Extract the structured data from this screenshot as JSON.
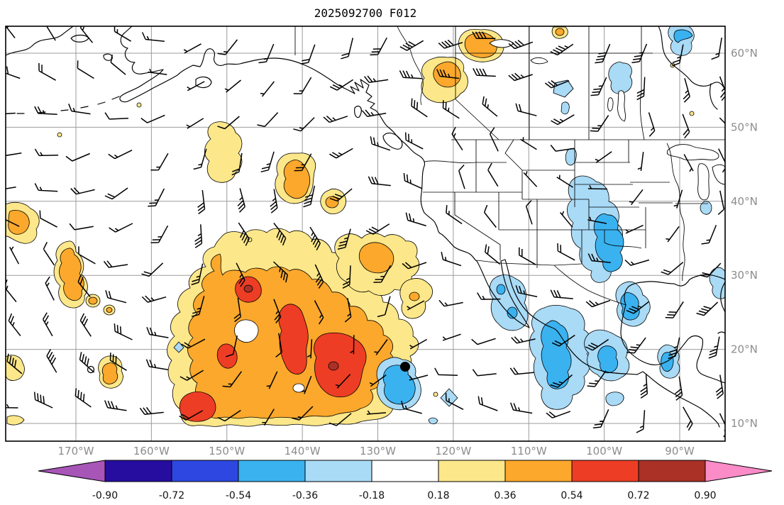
{
  "title": "2025092700 F012",
  "figure": {
    "background": "#ffffff",
    "frame_color": "#000000",
    "grid_color": "#9b9b9b",
    "tick_label_color": "#8c8c8c",
    "coast_color": "#000000",
    "barb_color": "#000000"
  },
  "chart_data": {
    "type": "heatmap",
    "variant": "filled-contour weather map with wind barbs, coastlines and lat/lon grid",
    "title": "2025092700 F012",
    "lon_range": [
      -179.5,
      -84.0
    ],
    "lat_range": [
      7.5,
      63.5
    ],
    "grid": true,
    "x_axis": {
      "ticks": [
        {
          "value": -170,
          "label": "170°W"
        },
        {
          "value": -160,
          "label": "160°W"
        },
        {
          "value": -150,
          "label": "150°W"
        },
        {
          "value": -140,
          "label": "140°W"
        },
        {
          "value": -130,
          "label": "130°W"
        },
        {
          "value": -120,
          "label": "120°W"
        },
        {
          "value": -110,
          "label": "110°W"
        },
        {
          "value": -100,
          "label": "100°W"
        },
        {
          "value": -90,
          "label": "90°W"
        }
      ]
    },
    "y_axis": {
      "ticks": [
        {
          "value": 60,
          "label": "60°N"
        },
        {
          "value": 50,
          "label": "50°N"
        },
        {
          "value": 40,
          "label": "40°N"
        },
        {
          "value": 30,
          "label": "30°N"
        },
        {
          "value": 20,
          "label": "20°N"
        },
        {
          "value": 10,
          "label": "10°N"
        }
      ]
    },
    "colorbar": {
      "orientation": "horizontal",
      "position": "bottom",
      "extend": "both",
      "tick_labels": [
        "-0.90",
        "-0.72",
        "-0.54",
        "-0.36",
        "-0.18",
        "0.18",
        "0.36",
        "0.54",
        "0.72",
        "0.90"
      ],
      "tick_values": [
        -0.9,
        -0.72,
        -0.54,
        -0.36,
        -0.18,
        0.18,
        0.36,
        0.54,
        0.72,
        0.9
      ],
      "colors": [
        "#a855b8",
        "#260da0",
        "#2d47e0",
        "#3ab2f0",
        "#a9daf6",
        "#ffffff",
        "#fce78a",
        "#fba82c",
        "#ee3d25",
        "#a93126",
        "#fb8cc8"
      ]
    },
    "fill_levels": {
      "m2": {
        "range": [
          -0.54,
          -0.36
        ],
        "color": "#3ab2f0"
      },
      "m1": {
        "range": [
          -0.36,
          -0.18
        ],
        "color": "#a9daf6"
      },
      "zero": {
        "range": [
          -0.18,
          0.18
        ],
        "color": "#ffffff"
      },
      "p1": {
        "range": [
          0.18,
          0.36
        ],
        "color": "#fce78a"
      },
      "p2": {
        "range": [
          0.36,
          0.54
        ],
        "color": "#fba82c"
      },
      "p3": {
        "range": [
          0.54,
          0.72
        ],
        "color": "#ee3d25"
      },
      "p4": {
        "range": [
          0.72,
          0.9
        ],
        "color": "#a93126"
      },
      "lake": {
        "range": null,
        "color": "#a9daf6"
      }
    },
    "wind_barbs": {
      "present": true,
      "color": "#000000",
      "units_note": "half barb = 5, full barb = 10, pennant = 50",
      "layout_note": "barbs plotted on a regular ~5 degree grid over the whole map"
    },
    "markers": [
      {
        "type": "filled-circle",
        "color": "#000000",
        "approx_location": "126°W, 17.5°N"
      },
      {
        "type": "open-circle",
        "color": "#000000",
        "approx_location": "168°W, 17°N"
      }
    ],
    "shaded_regions": [
      {
        "level": "0.36 to 0.72 (orange/red)",
        "where": "large region, central tropical/subtropical North Pacific ~135-165°W, 8-30°N"
      },
      {
        "level": "0.18 to 0.54 (yellow/orange)",
        "where": "Gulf of Alaska / NE Pacific patches ~140-155°W, 35-55°N"
      },
      {
        "level": "0.18 to 0.54 (yellow/orange)",
        "where": "NW Canada near 118-125°W, 55-63°N"
      },
      {
        "level": "-0.36 to -0.54 (blue)",
        "where": "US Rockies / High Plains ~100-108°W, 32-45°N"
      },
      {
        "level": "-0.36 to -0.54 (blue)",
        "where": "Mexico and Central America ~90-115°W, 8-30°N"
      },
      {
        "level": "-0.36 to -0.54 (blue)",
        "where": "small cell near 127°W, 15°N beside black dot marker"
      },
      {
        "level": "-0.18 to -0.36 (light blue)",
        "where": "northern Canada patches ~95-105°W, 55-63°N"
      }
    ]
  }
}
